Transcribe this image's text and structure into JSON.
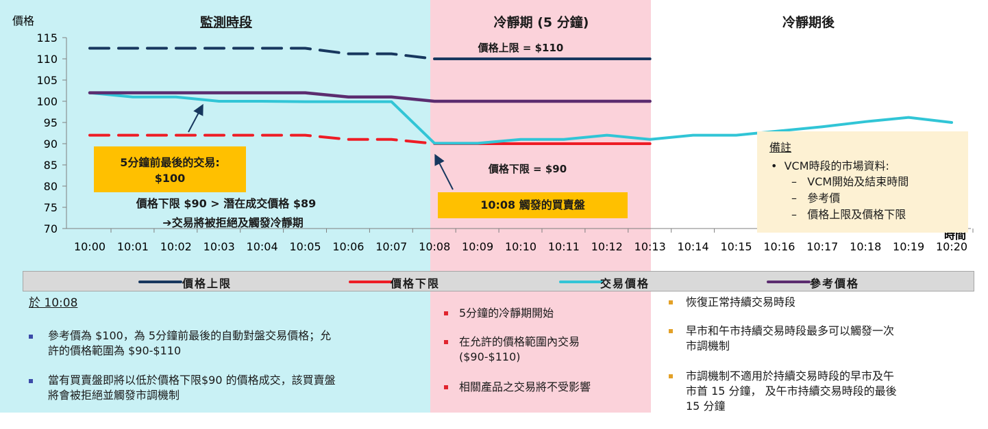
{
  "zones": {
    "monitor": "監測時段",
    "cooling": "冷靜期 (5 分鐘)",
    "after": "冷靜期後"
  },
  "colors": {
    "monitor_bg": "#c9f1f5",
    "cooling_bg": "#fbd2da",
    "upper": "#17375e",
    "lower": "#ee1c25",
    "trade": "#31c5d6",
    "reference": "#5b2c6f",
    "gold": "#ffc000",
    "note_bg": "#fdf1d3"
  },
  "chart_data": {
    "type": "line",
    "ylabel": "價格",
    "xlabel": "時間",
    "ylim": [
      70,
      115
    ],
    "yticks": [
      70,
      75,
      80,
      85,
      90,
      95,
      100,
      105,
      110,
      115
    ],
    "categories": [
      "10:00",
      "10:01",
      "10:02",
      "10:03",
      "10:04",
      "10:05",
      "10:06",
      "10:07",
      "10:08",
      "10:09",
      "10:10",
      "10:11",
      "10:12",
      "10:13",
      "10:14",
      "10:15",
      "10:16",
      "10:17",
      "10:18",
      "10:19",
      "10:20"
    ],
    "series": [
      {
        "name": "價格上限",
        "key": "upper",
        "style": "dashed-then-solid",
        "x": [
          0,
          1,
          2,
          3,
          4,
          5,
          6,
          7,
          8,
          9,
          10,
          11,
          12,
          13
        ],
        "values": [
          112.5,
          112.5,
          112.5,
          112.5,
          112.5,
          112.5,
          111.2,
          111.2,
          110,
          110,
          110,
          110,
          110,
          110
        ]
      },
      {
        "name": "價格下限",
        "key": "lower",
        "style": "dashed-then-solid",
        "x": [
          0,
          1,
          2,
          3,
          4,
          5,
          6,
          7,
          8,
          9,
          10,
          11,
          12,
          13
        ],
        "values": [
          92,
          92,
          92,
          92,
          92,
          92,
          91,
          91,
          90,
          90,
          90,
          90,
          90,
          90
        ]
      },
      {
        "name": "交易價格",
        "key": "trade",
        "style": "solid",
        "x": [
          0,
          1,
          2,
          3,
          4,
          5,
          6,
          7,
          8,
          9,
          10,
          11,
          12,
          13,
          14,
          15,
          16,
          17,
          18,
          19,
          20
        ],
        "values": [
          102,
          101,
          101,
          100,
          100,
          99.9,
          99.9,
          99.9,
          90.1,
          90.1,
          91,
          91,
          92,
          91,
          92,
          92,
          93,
          94,
          95.2,
          96.2,
          95
        ]
      },
      {
        "name": "參考價格",
        "key": "reference",
        "style": "solid",
        "x": [
          0,
          1,
          2,
          3,
          4,
          5,
          6,
          7,
          8,
          9,
          10,
          11,
          12,
          13
        ],
        "values": [
          102,
          102,
          102,
          102,
          102,
          102,
          101,
          101,
          100,
          100,
          100,
          100,
          100,
          100
        ]
      }
    ],
    "annotations": {
      "upper_label": "價格上限 = $110",
      "lower_label": "價格下限 = $90",
      "last_trade_line1": "5分鐘前最後的交易:",
      "last_trade_line2": "$100",
      "reject_line1": "價格下限 $90 > 潛在成交價格 $89",
      "reject_line2": "交易將被拒絕及觸發冷靜期",
      "trigger": "10:08 觸發的買賣盤"
    },
    "legend_position": "bottom"
  },
  "notes": {
    "title": "備註",
    "item": "VCM時段的市場資料:",
    "subitems": [
      "VCM開始及結束時間",
      "參考價",
      "價格上限及價格下限"
    ]
  },
  "monitor_text": {
    "heading": "於 10:08",
    "bullets": [
      [
        "參考價為 $100，為 5分鐘前最後的自動對盤交易價格；允",
        "許的價格範圍為 $90-$110"
      ],
      [
        "當有買賣盤即將以低於價格下限$90 的價格成交，該買賣盤",
        "將會被拒絕並觸發市調機制"
      ]
    ]
  },
  "cooling_text": {
    "bullets": [
      [
        "5分鐘的冷靜期開始"
      ],
      [
        "在允許的價格範圍內交易",
        "($90-$110)"
      ],
      [
        "相關產品之交易將不受影響"
      ]
    ]
  },
  "after_text": {
    "bullets": [
      [
        "恢復正常持續交易時段"
      ],
      [
        "早市和午市持續交易時段最多可以觸發一次",
        "市調機制"
      ],
      [
        "市調機制不適用於持續交易時段的早市及午",
        "市首 15 分鐘， 及午市持續交易時段的最後",
        "15 分鐘"
      ]
    ]
  }
}
